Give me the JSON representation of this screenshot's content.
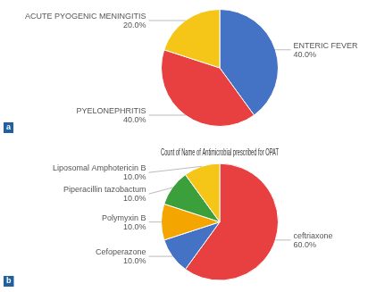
{
  "chart_data": [
    {
      "type": "pie",
      "categories": [
        "ENTERIC FEVER",
        "PYELONEPHRITIS",
        "ACUTE PYOGENIC MENINGITIS"
      ],
      "values": [
        40.0,
        40.0,
        20.0
      ],
      "value_labels": [
        "40.0%",
        "40.0%",
        "20.0%"
      ],
      "colors": [
        "#4472C4",
        "#E84040",
        "#F5C518"
      ],
      "data_labels": true,
      "annotations": [
        "a"
      ]
    },
    {
      "type": "pie",
      "title": "Count of Name of Antimicrobial prescribed for OPAT",
      "categories": [
        "ceftriaxone",
        "Cefoperazone",
        "Polymyxin B",
        "Piperacillin tazobactum",
        "Liposomal Amphotericin B"
      ],
      "values": [
        60.0,
        10.0,
        10.0,
        10.0,
        10.0
      ],
      "value_labels": [
        "60.0%",
        "10.0%",
        "10.0%",
        "10.0%",
        "10.0%"
      ],
      "colors": [
        "#E84040",
        "#4472C4",
        "#F5A500",
        "#3BA03B",
        "#F5C518"
      ],
      "data_labels": true,
      "annotations": [
        "b"
      ]
    }
  ]
}
